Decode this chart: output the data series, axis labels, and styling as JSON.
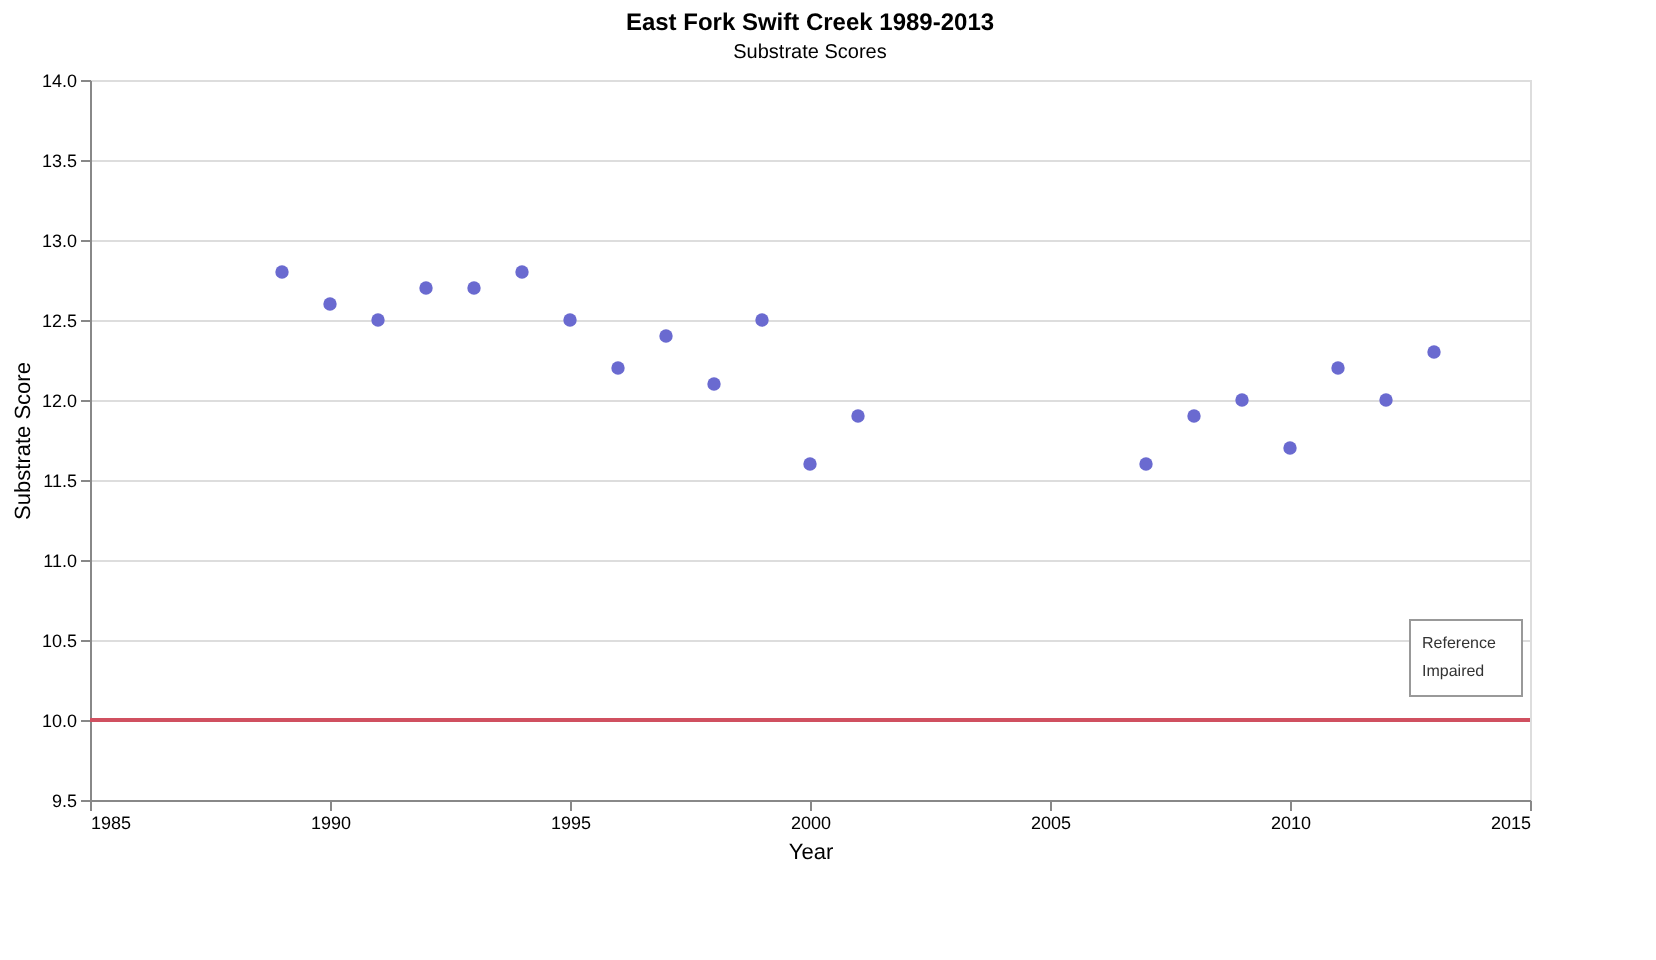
{
  "chart_data": {
    "type": "scatter",
    "title": "East Fork Swift Creek 1989-2013",
    "subtitle": "Substrate Scores",
    "xlabel": "Year",
    "ylabel": "Substrate Score",
    "x": [
      1989,
      1990,
      1991,
      1992,
      1993,
      1994,
      1995,
      1996,
      1997,
      1998,
      1999,
      2000,
      2001,
      2007,
      2008,
      2009,
      2010,
      2011,
      2012,
      2013
    ],
    "series": [
      {
        "color": "#6a6ad0",
        "values": [
          12.8,
          12.6,
          12.5,
          12.7,
          12.7,
          12.8,
          12.5,
          12.2,
          12.4,
          12.1,
          12.5,
          11.6,
          11.9,
          11.6,
          11.9,
          12.0,
          11.7,
          12.2,
          12.0,
          12.3
        ]
      }
    ],
    "xlim": [
      1985,
      2015
    ],
    "xticks": [
      1985,
      1990,
      1995,
      2000,
      2005,
      2010,
      2015
    ],
    "ylim": [
      9.5,
      14.0
    ],
    "yticks": [
      {
        "value": 9.5,
        "label": "9.5"
      },
      {
        "value": 10,
        "label": "10.0"
      },
      {
        "value": 10.5,
        "label": "10.5"
      },
      {
        "value": 11,
        "label": "11.0"
      },
      {
        "value": 11.5,
        "label": "11.5"
      },
      {
        "value": 12,
        "label": "12.0"
      },
      {
        "value": 12.5,
        "label": "12.5"
      },
      {
        "value": 13,
        "label": "13.0"
      },
      {
        "value": 13.5,
        "label": "13.5"
      },
      {
        "value": 14,
        "label": "14.0"
      }
    ],
    "ref_lines": [
      {
        "axis": "y",
        "value": 10,
        "color": "#d05060"
      }
    ],
    "annotations": [
      "Reference",
      "Impaired"
    ],
    "grid": "y",
    "marker": "circle"
  }
}
